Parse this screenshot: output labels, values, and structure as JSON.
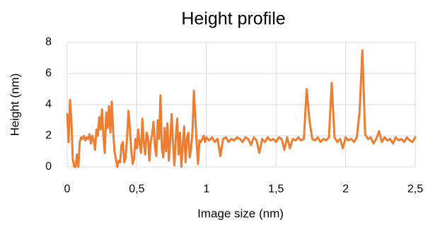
{
  "chart_data": {
    "type": "line",
    "title": "Height profile",
    "xlabel": "Image size (nm)",
    "ylabel": "Height (nm)",
    "color": "#ed7d31",
    "grid": true,
    "x": [
      0,
      0.01,
      0.02,
      0.03,
      0.04,
      0.05,
      0.06,
      0.07,
      0.08,
      0.09,
      0.1,
      0.11,
      0.12,
      0.13,
      0.14,
      0.15,
      0.16,
      0.17,
      0.18,
      0.19,
      0.2,
      0.21,
      0.22,
      0.23,
      0.24,
      0.25,
      0.26,
      0.27,
      0.28,
      0.29,
      0.3,
      0.31,
      0.32,
      0.33,
      0.34,
      0.35,
      0.36,
      0.37,
      0.38,
      0.39,
      0.4,
      0.41,
      0.42,
      0.43,
      0.44,
      0.45,
      0.46,
      0.47,
      0.48,
      0.49,
      0.5,
      0.51,
      0.52,
      0.53,
      0.54,
      0.55,
      0.56,
      0.57,
      0.58,
      0.59,
      0.6,
      0.61,
      0.62,
      0.63,
      0.64,
      0.65,
      0.66,
      0.67,
      0.68,
      0.69,
      0.7,
      0.71,
      0.72,
      0.73,
      0.74,
      0.75,
      0.76,
      0.77,
      0.78,
      0.79,
      0.8,
      0.81,
      0.82,
      0.83,
      0.84,
      0.85,
      0.86,
      0.87,
      0.88,
      0.89,
      0.9,
      0.91,
      0.92,
      0.93,
      0.94,
      0.95,
      0.96,
      0.97,
      0.98,
      0.99,
      1,
      1.02,
      1.04,
      1.06,
      1.08,
      1.1,
      1.12,
      1.14,
      1.16,
      1.18,
      1.2,
      1.22,
      1.24,
      1.26,
      1.28,
      1.3,
      1.32,
      1.34,
      1.36,
      1.38,
      1.4,
      1.42,
      1.44,
      1.46,
      1.48,
      1.5,
      1.52,
      1.54,
      1.56,
      1.58,
      1.6,
      1.62,
      1.64,
      1.66,
      1.68,
      1.7,
      1.72,
      1.74,
      1.76,
      1.78,
      1.8,
      1.82,
      1.84,
      1.86,
      1.88,
      1.9,
      1.92,
      1.94,
      1.96,
      1.98,
      2,
      2.02,
      2.04,
      2.06,
      2.08,
      2.1,
      2.12,
      2.14,
      2.16,
      2.18,
      2.2,
      2.22,
      2.24,
      2.26,
      2.28,
      2.3,
      2.32,
      2.34,
      2.36,
      2.38,
      2.4,
      2.42,
      2.44,
      2.46,
      2.48,
      2.5
    ],
    "values": [
      3.4,
      1.6,
      4.3,
      3.0,
      0.5,
      0,
      0,
      0.8,
      0,
      1.6,
      1.9,
      1.8,
      2.0,
      1.7,
      1.9,
      1.8,
      2.1,
      1.5,
      2.0,
      1.7,
      1.1,
      2.4,
      2.0,
      3.2,
      2.4,
      3.7,
      2.0,
      0.9,
      3.5,
      2.5,
      3.9,
      2.2,
      4.2,
      2.3,
      1.0,
      0.5,
      0,
      0.4,
      0.3,
      1.4,
      1.6,
      0.3,
      0.6,
      1.9,
      3.6,
      2.5,
      1.1,
      0.2,
      0.5,
      1.8,
      1.2,
      2.4,
      1.5,
      0.9,
      3.1,
      1.6,
      0.8,
      2.2,
      1.9,
      0.4,
      1.6,
      2.1,
      2.9,
      1.3,
      0.7,
      3.0,
      1.8,
      4.6,
      1.2,
      0.6,
      2.5,
      1.0,
      2.8,
      0.4,
      1.7,
      3.4,
      1.5,
      0.1,
      1.9,
      3.1,
      0.8,
      2.2,
      0,
      1.4,
      2.6,
      0.3,
      1.8,
      2.2,
      0.6,
      1.2,
      2.3,
      4.9,
      3.2,
      1.5,
      0.2,
      1.7,
      1.6,
      1.8,
      2.0,
      1.6,
      1.9,
      1.7,
      1.9,
      1.6,
      1.8,
      0.7,
      1.8,
      1.9,
      1.6,
      1.8,
      1.7,
      1.9,
      1.8,
      1.6,
      1.9,
      1.8,
      1.4,
      1.9,
      1.7,
      0.9,
      1.8,
      1.6,
      1.9,
      1.7,
      1.8,
      1.6,
      1.9,
      1.8,
      1.1,
      1.9,
      1.2,
      1.8,
      1.7,
      1.9,
      1.7,
      1.8,
      5.0,
      3.0,
      1.8,
      1.7,
      1.9,
      1.6,
      1.8,
      1.7,
      1.9,
      5.4,
      1.9,
      1.6,
      1.8,
      1.2,
      1.9,
      1.7,
      1.8,
      1.6,
      1.9,
      3.5,
      7.5,
      2.1,
      1.8,
      1.9,
      1.5,
      1.8,
      2.3,
      1.6,
      1.9,
      1.7,
      1.8,
      1.5,
      1.9,
      1.7,
      1.8,
      1.6,
      1.9,
      1.7,
      1.6,
      1.9
    ],
    "xlim": [
      0,
      2.5
    ],
    "xticks": [
      0,
      {
        "value": 0.5,
        "label": "0,5"
      },
      1,
      {
        "value": 1.5,
        "label": "1,5"
      },
      2,
      {
        "value": 2.5,
        "label": "2,5"
      }
    ],
    "ylim": [
      0,
      8
    ],
    "yticks": [
      0,
      2,
      4,
      6,
      8
    ]
  }
}
